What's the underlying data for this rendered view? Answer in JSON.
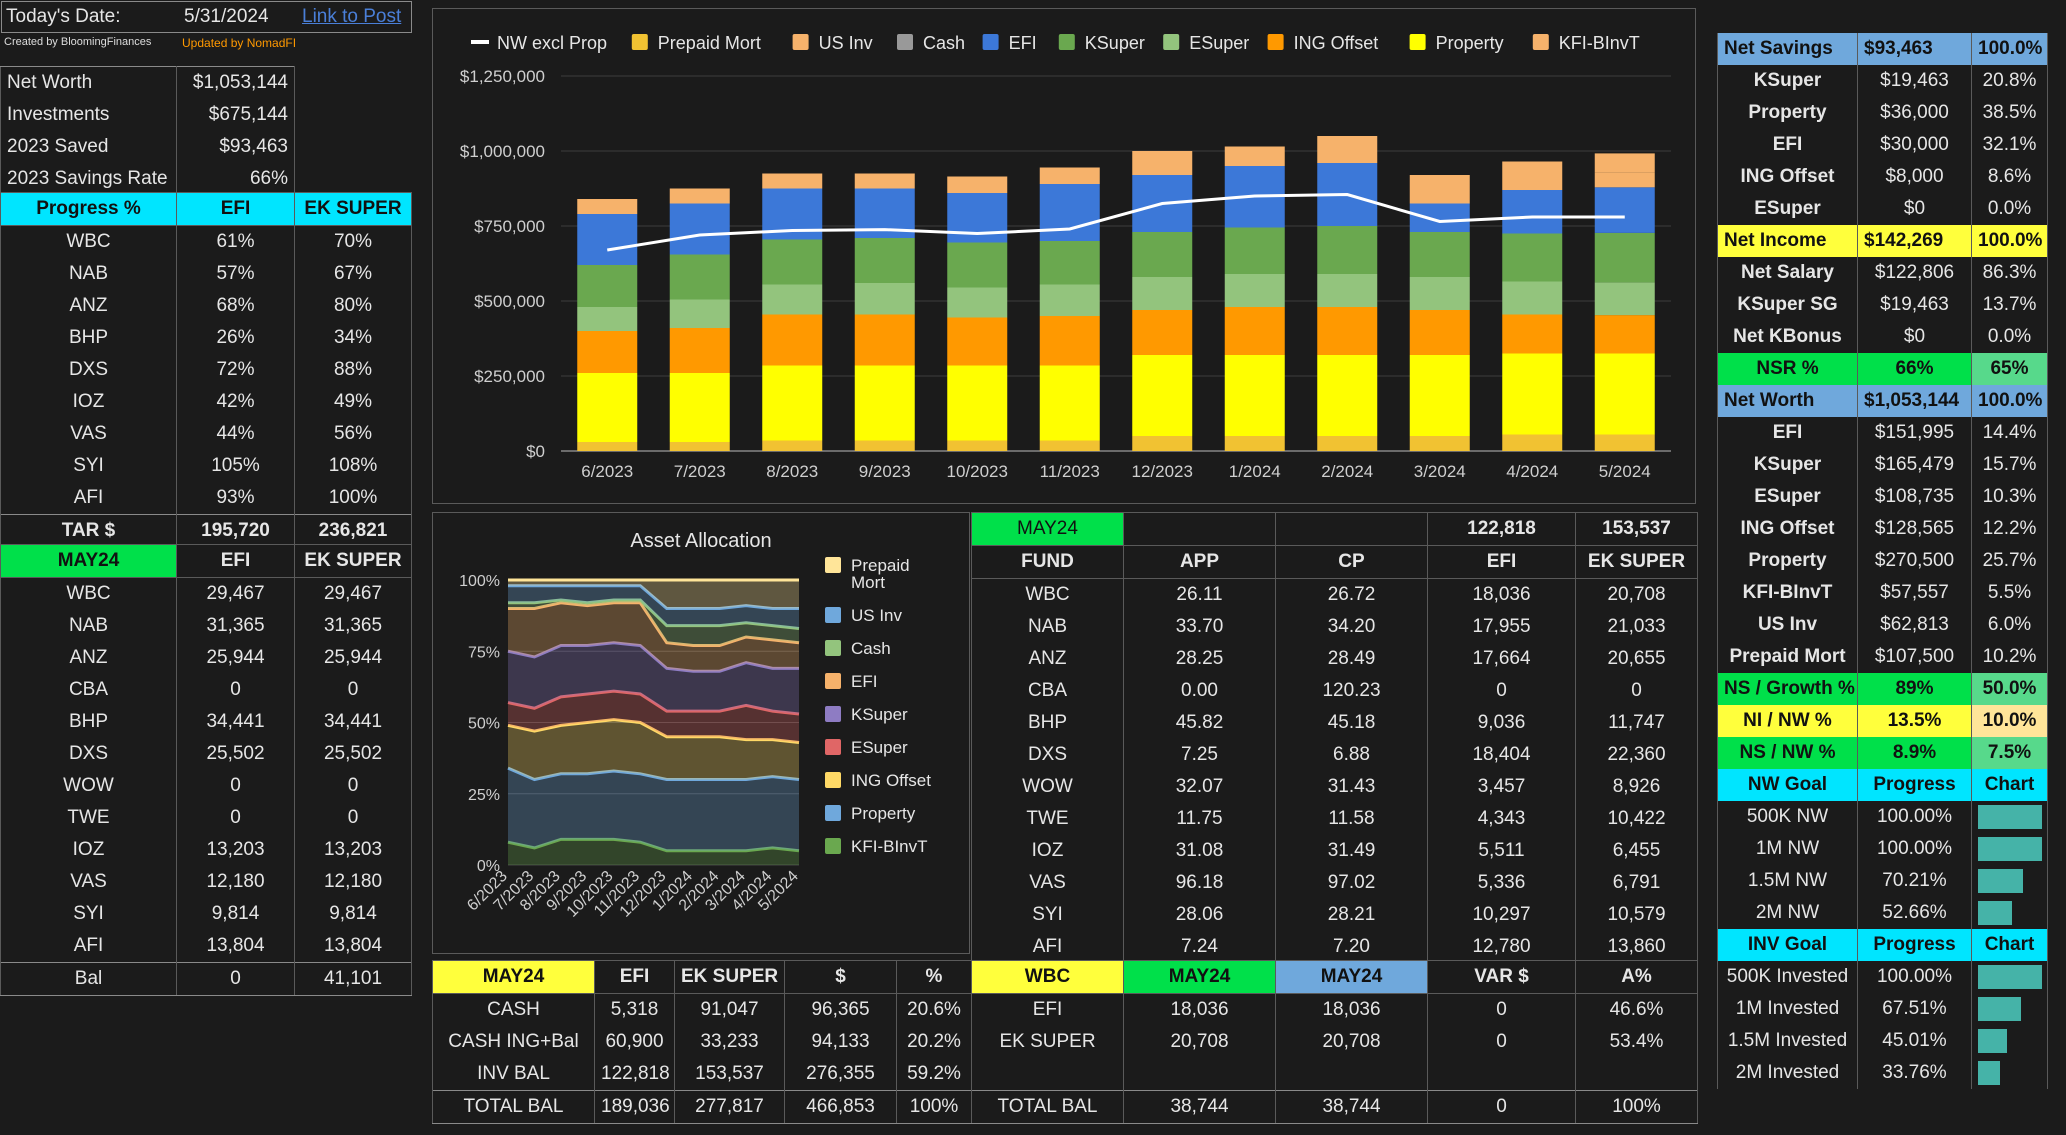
{
  "header": {
    "date_label": "Today's Date:",
    "date_value": "5/31/2024",
    "post_link": "Link to Post",
    "created_by": "Created by BloomingFinances",
    "updated_by": "Updated by NomadFI"
  },
  "summary": [
    {
      "label": "Net Worth",
      "value": "$1,053,144"
    },
    {
      "label": "Investments",
      "value": "$675,144"
    },
    {
      "label": "2023 Saved",
      "value": "$93,463"
    },
    {
      "label": "2023 Savings Rate",
      "value": "66%"
    }
  ],
  "progress": {
    "headers": [
      "Progress %",
      "EFI",
      "EK SUPER"
    ],
    "rows": [
      [
        "WBC",
        "61%",
        "70%"
      ],
      [
        "NAB",
        "57%",
        "67%"
      ],
      [
        "ANZ",
        "68%",
        "80%"
      ],
      [
        "BHP",
        "26%",
        "34%"
      ],
      [
        "DXS",
        "72%",
        "88%"
      ],
      [
        "IOZ",
        "42%",
        "49%"
      ],
      [
        "VAS",
        "44%",
        "56%"
      ],
      [
        "SYI",
        "105%",
        "108%"
      ],
      [
        "AFI",
        "93%",
        "100%"
      ]
    ],
    "tar": [
      "TAR $",
      "195,720",
      "236,821"
    ]
  },
  "may24_left": {
    "headers": [
      "MAY24",
      "EFI",
      "EK SUPER"
    ],
    "rows": [
      [
        "WBC",
        "29,467",
        "29,467"
      ],
      [
        "NAB",
        "31,365",
        "31,365"
      ],
      [
        "ANZ",
        "25,944",
        "25,944"
      ],
      [
        "CBA",
        "0",
        "0"
      ],
      [
        "BHP",
        "34,441",
        "34,441"
      ],
      [
        "DXS",
        "25,502",
        "25,502"
      ],
      [
        "WOW",
        "0",
        "0"
      ],
      [
        "TWE",
        "0",
        "0"
      ],
      [
        "IOZ",
        "13,203",
        "13,203"
      ],
      [
        "VAS",
        "12,180",
        "12,180"
      ],
      [
        "SYI",
        "9,814",
        "9,814"
      ],
      [
        "AFI",
        "13,804",
        "13,804"
      ]
    ],
    "bal": [
      "Bal",
      "0",
      "41,101"
    ]
  },
  "chart_data": [
    {
      "type": "bar",
      "stacked": true,
      "categories": [
        "6/2023",
        "7/2023",
        "8/2023",
        "9/2023",
        "10/2023",
        "11/2023",
        "12/2023",
        "1/2024",
        "2/2024",
        "3/2024",
        "4/2024",
        "5/2024"
      ],
      "ylim": [
        0,
        1250000
      ],
      "yticks": [
        "$0",
        "$250,000",
        "$500,000",
        "$750,000",
        "$1,000,000",
        "$1,250,000"
      ],
      "legend_position": "top",
      "series": [
        {
          "name": "Prepaid Mort",
          "color": "#f1c232",
          "values": [
            30000,
            30000,
            35000,
            35000,
            35000,
            35000,
            50000,
            50000,
            50000,
            50000,
            55000,
            55000
          ]
        },
        {
          "name": "Property",
          "color": "#ffff00",
          "values": [
            230000,
            230000,
            250000,
            250000,
            250000,
            250000,
            270000,
            270000,
            270000,
            270000,
            270000,
            270000
          ]
        },
        {
          "name": "ING Offset",
          "color": "#ff9900",
          "values": [
            140000,
            150000,
            170000,
            170000,
            160000,
            165000,
            150000,
            160000,
            160000,
            150000,
            130000,
            128000
          ]
        },
        {
          "name": "ESuper",
          "color": "#93c47d",
          "values": [
            80000,
            95000,
            100000,
            105000,
            100000,
            105000,
            110000,
            110000,
            110000,
            110000,
            110000,
            109000
          ]
        },
        {
          "name": "KSuper",
          "color": "#6aa84f",
          "values": [
            140000,
            150000,
            150000,
            150000,
            150000,
            145000,
            150000,
            155000,
            160000,
            150000,
            160000,
            165000
          ]
        },
        {
          "name": "EFI",
          "color": "#3c78d8",
          "values": [
            170000,
            170000,
            170000,
            165000,
            165000,
            190000,
            190000,
            205000,
            210000,
            95000,
            145000,
            152000
          ]
        },
        {
          "name": "KFI-BInvT",
          "color": "#f6b26b",
          "values": [
            0,
            0,
            0,
            0,
            0,
            0,
            25000,
            35000,
            35000,
            40000,
            35000,
            50000
          ]
        },
        {
          "name": "US Inv",
          "color": "#f6b26b",
          "values": [
            50000,
            50000,
            50000,
            50000,
            55000,
            55000,
            55000,
            30000,
            55000,
            55000,
            60000,
            63000
          ]
        },
        {
          "name": "Cash",
          "color": "#999999",
          "values": [
            0,
            0,
            0,
            0,
            0,
            0,
            0,
            0,
            0,
            0,
            0,
            0
          ]
        },
        {
          "name": "NW excl Prop",
          "type": "line",
          "color": "#ffffff",
          "values": [
            670000,
            720000,
            735000,
            738000,
            725000,
            740000,
            825000,
            850000,
            855000,
            765000,
            780000,
            780000
          ]
        }
      ],
      "legend_order": [
        "NW excl Prop",
        "Prepaid Mort",
        "US Inv",
        "Cash",
        "EFI",
        "KSuper",
        "ESuper",
        "ING Offset",
        "Property",
        "KFI-BInvT"
      ],
      "legend_colors": {
        "NW excl Prop": "#ffffff",
        "Prepaid Mort": "#f1c232",
        "US Inv": "#f6b26b",
        "Cash": "#999999",
        "EFI": "#3c78d8",
        "KSuper": "#6aa84f",
        "ESuper": "#93c47d",
        "ING Offset": "#ff9900",
        "Property": "#ffff00",
        "KFI-BInvT": "#f6b26b"
      }
    },
    {
      "type": "area",
      "stacked": true,
      "title": "Asset Allocation",
      "categories": [
        "6/2023",
        "7/2023",
        "8/2023",
        "9/2023",
        "10/2023",
        "11/2023",
        "12/2023",
        "1/2024",
        "2/2024",
        "3/2024",
        "4/2024",
        "5/2024"
      ],
      "yticks": [
        "0%",
        "25%",
        "50%",
        "75%",
        "100%"
      ],
      "ylim": [
        0,
        100
      ],
      "legend_position": "right",
      "series": [
        {
          "name": "KFI-BInvT",
          "color": "#6aa84f",
          "values": [
            8,
            6,
            9,
            9,
            9,
            8,
            5,
            5,
            5,
            5,
            6,
            5
          ]
        },
        {
          "name": "Property",
          "color": "#6fa8dc",
          "values": [
            26,
            24,
            23,
            23,
            24,
            24,
            25,
            25,
            25,
            25,
            25,
            25
          ]
        },
        {
          "name": "ING Offset",
          "color": "#ffd966",
          "values": [
            15,
            17,
            17,
            18,
            18,
            18,
            15,
            15,
            15,
            14,
            13,
            13
          ]
        },
        {
          "name": "ESuper",
          "color": "#e06666",
          "values": [
            8,
            8,
            10,
            10,
            10,
            10,
            9,
            9,
            9,
            12,
            10,
            10
          ]
        },
        {
          "name": "KSuper",
          "color": "#8e7cc3",
          "values": [
            18,
            18,
            18,
            17,
            17,
            17,
            15,
            14,
            14,
            15,
            15,
            16
          ]
        },
        {
          "name": "EFI",
          "color": "#f6b26b",
          "values": [
            15,
            17,
            15,
            14,
            14,
            15,
            9,
            9,
            9,
            9,
            10,
            9
          ]
        },
        {
          "name": "Cash",
          "color": "#93c47d",
          "values": [
            2,
            2,
            1,
            1,
            1,
            1,
            6,
            7,
            7,
            5,
            5,
            5
          ]
        },
        {
          "name": "US Inv",
          "color": "#6fa8dc",
          "values": [
            6,
            6,
            5,
            6,
            5,
            5,
            6,
            6,
            6,
            6,
            6,
            7
          ]
        },
        {
          "name": "Prepaid Mort",
          "color": "#ffe599",
          "values": [
            2,
            2,
            2,
            2,
            2,
            2,
            10,
            10,
            10,
            9,
            10,
            10
          ]
        }
      ],
      "legend_order": [
        "Prepaid Mort",
        "US Inv",
        "Cash",
        "EFI",
        "KSuper",
        "ESuper",
        "ING Offset",
        "Property",
        "KFI-BInvT"
      ]
    }
  ],
  "fund_table": {
    "top": [
      "MAY24",
      "",
      "",
      "122,818",
      "153,537"
    ],
    "headers": [
      "FUND",
      "APP",
      "CP",
      "EFI",
      "EK SUPER"
    ],
    "rows": [
      [
        "WBC",
        "26.11",
        "26.72",
        "18,036",
        "20,708"
      ],
      [
        "NAB",
        "33.70",
        "34.20",
        "17,955",
        "21,033"
      ],
      [
        "ANZ",
        "28.25",
        "28.49",
        "17,664",
        "20,655"
      ],
      [
        "CBA",
        "0.00",
        "120.23",
        "0",
        "0"
      ],
      [
        "BHP",
        "45.82",
        "45.18",
        "9,036",
        "11,747"
      ],
      [
        "DXS",
        "7.25",
        "6.88",
        "18,404",
        "22,360"
      ],
      [
        "WOW",
        "32.07",
        "31.43",
        "3,457",
        "8,926"
      ],
      [
        "TWE",
        "11.75",
        "11.58",
        "4,343",
        "10,422"
      ],
      [
        "IOZ",
        "31.08",
        "31.49",
        "5,511",
        "6,455"
      ],
      [
        "VAS",
        "96.18",
        "97.02",
        "5,336",
        "6,791"
      ],
      [
        "SYI",
        "28.06",
        "28.21",
        "10,297",
        "10,579"
      ],
      [
        "AFI",
        "7.24",
        "7.20",
        "12,780",
        "13,860"
      ]
    ]
  },
  "cash_table": {
    "headers": [
      "MAY24",
      "EFI",
      "EK SUPER",
      "$",
      "%"
    ],
    "rows": [
      [
        "CASH",
        "5,318",
        "91,047",
        "96,365",
        "20.6%"
      ],
      [
        "CASH ING+Bal",
        "60,900",
        "33,233",
        "94,133",
        "20.2%"
      ],
      [
        "INV BAL",
        "122,818",
        "153,537",
        "276,355",
        "59.2%"
      ],
      [
        "TOTAL BAL",
        "189,036",
        "277,817",
        "466,853",
        "100%"
      ]
    ]
  },
  "wbc_table": {
    "headers": [
      "WBC",
      "MAY24",
      "MAY24",
      "VAR $",
      "A%"
    ],
    "rows": [
      [
        "EFI",
        "18,036",
        "18,036",
        "0",
        "46.6%"
      ],
      [
        "EK SUPER",
        "20,708",
        "20,708",
        "0",
        "53.4%"
      ],
      [
        "",
        "",
        "",
        "",
        ""
      ],
      [
        "TOTAL BAL",
        "38,744",
        "38,744",
        "0",
        "100%"
      ]
    ]
  },
  "right": {
    "net_savings": {
      "h": [
        "Net Savings",
        "$93,463",
        "100.0%"
      ],
      "rows": [
        [
          "KSuper",
          "$19,463",
          "20.8%"
        ],
        [
          "Property",
          "$36,000",
          "38.5%"
        ],
        [
          "EFI",
          "$30,000",
          "32.1%"
        ],
        [
          "ING Offset",
          "$8,000",
          "8.6%"
        ],
        [
          "ESuper",
          "$0",
          "0.0%"
        ]
      ]
    },
    "net_income": {
      "h": [
        "Net Income",
        "$142,269",
        "100.0%"
      ],
      "rows": [
        [
          "Net Salary",
          "$122,806",
          "86.3%"
        ],
        [
          "KSuper SG",
          "$19,463",
          "13.7%"
        ],
        [
          "Net KBonus",
          "$0",
          "0.0%"
        ]
      ]
    },
    "nsr": [
      "NSR %",
      "66%",
      "65%"
    ],
    "net_worth": {
      "h": [
        "Net Worth",
        "$1,053,144",
        "100.0%"
      ],
      "rows": [
        [
          "EFI",
          "$151,995",
          "14.4%"
        ],
        [
          "KSuper",
          "$165,479",
          "15.7%"
        ],
        [
          "ESuper",
          "$108,735",
          "10.3%"
        ],
        [
          "ING Offset",
          "$128,565",
          "12.2%"
        ],
        [
          "Property",
          "$270,500",
          "25.7%"
        ],
        [
          "KFI-BInvT",
          "$57,557",
          "5.5%"
        ],
        [
          "US Inv",
          "$62,813",
          "6.0%"
        ],
        [
          "Prepaid Mort",
          "$107,500",
          "10.2%"
        ]
      ]
    },
    "ns_growth": [
      "NS / Growth %",
      "89%",
      "50.0%"
    ],
    "ni_nw": [
      "NI / NW %",
      "13.5%",
      "10.0%"
    ],
    "ns_nw": [
      "NS / NW %",
      "8.9%",
      "7.5%"
    ],
    "nw_goal": {
      "h": [
        "NW Goal",
        "Progress",
        "Chart"
      ],
      "rows": [
        [
          "500K NW",
          "100.00%",
          1.0
        ],
        [
          "1M NW",
          "100.00%",
          1.0
        ],
        [
          "1.5M NW",
          "70.21%",
          0.7021
        ],
        [
          "2M NW",
          "52.66%",
          0.5266
        ]
      ]
    },
    "inv_goal": {
      "h": [
        "INV Goal",
        "Progress",
        "Chart"
      ],
      "rows": [
        [
          "500K Invested",
          "100.00%",
          1.0
        ],
        [
          "1M Invested",
          "67.51%",
          0.6751
        ],
        [
          "1.5M Invested",
          "45.01%",
          0.4501
        ],
        [
          "2M Invested",
          "33.76%",
          0.3376
        ]
      ]
    }
  }
}
